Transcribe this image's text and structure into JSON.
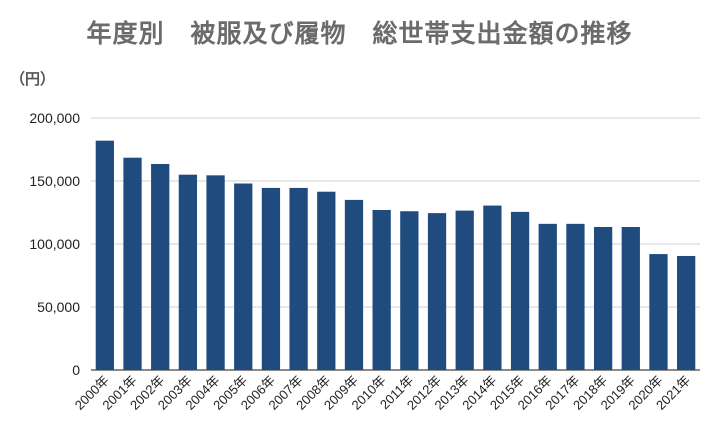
{
  "chart_data": {
    "type": "bar",
    "title": "年度別　被服及び履物　総世帯支出金額の推移",
    "ylabel": "（円）",
    "xlabel": "",
    "ylim": [
      0,
      200000
    ],
    "yticks": [
      0,
      50000,
      100000,
      150000,
      200000
    ],
    "ytick_labels": [
      "0",
      "50,000",
      "100,000",
      "150,000",
      "200,000"
    ],
    "grid": true,
    "bar_color": "#1f4b7f",
    "categories": [
      "2000年",
      "2001年",
      "2002年",
      "2003年",
      "2004年",
      "2005年",
      "2006年",
      "2007年",
      "2008年",
      "2009年",
      "2010年",
      "2011年",
      "2012年",
      "2013年",
      "2014年",
      "2015年",
      "2016年",
      "2017年",
      "2018年",
      "2019年",
      "2020年",
      "2021年"
    ],
    "values": [
      182000,
      168500,
      163500,
      155000,
      154500,
      148000,
      144500,
      144500,
      141500,
      135000,
      127000,
      126000,
      124500,
      126500,
      130500,
      125500,
      116000,
      116000,
      113500,
      113500,
      92000,
      90500
    ]
  }
}
